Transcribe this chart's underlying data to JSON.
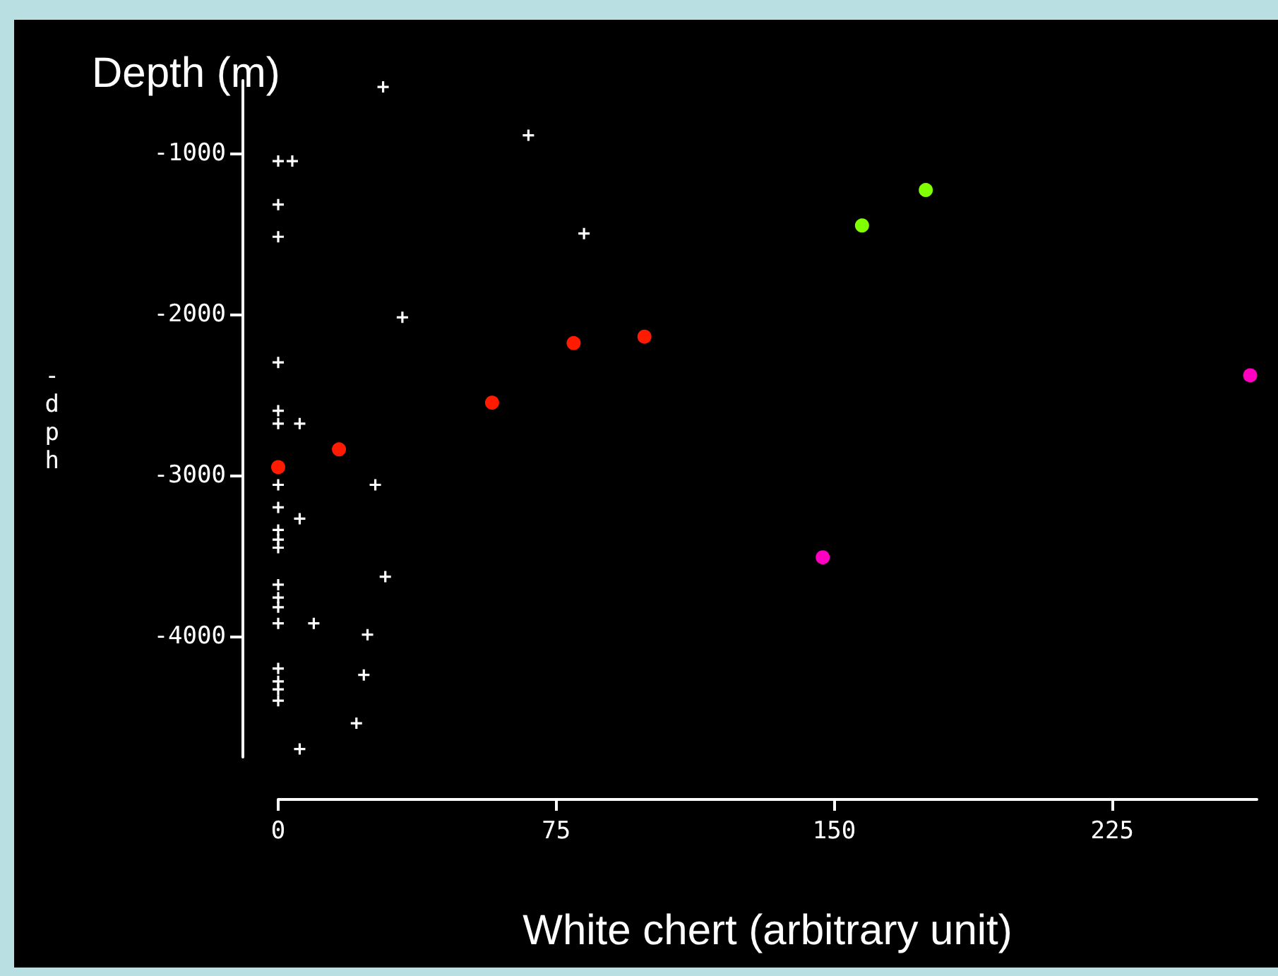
{
  "chart_data": {
    "type": "scatter",
    "title": "Depth (m)",
    "xlabel": "White chert (arbitrary unit)",
    "ylabel": "-dph",
    "xlim": [
      0,
      264
    ],
    "xticks": [
      0,
      75,
      150,
      225
    ],
    "ylim": [
      -4750,
      -550
    ],
    "yticks": [
      -4000,
      -3000,
      -2000,
      -1000
    ],
    "grid": false,
    "series": [
      {
        "color": "#ffffff",
        "marker": "cross",
        "x": [
          28.3,
          67.5,
          0,
          3.8,
          0,
          0,
          82.5,
          33.5,
          0,
          0,
          0,
          5.8,
          0,
          26.2,
          0,
          5.8,
          0,
          0,
          0,
          28.9,
          0,
          0,
          0,
          0,
          9.6,
          24.1,
          0,
          0,
          0,
          0,
          23.1,
          21.1,
          5.8
        ],
        "values": [
          -590,
          -890,
          -1050,
          -1050,
          -1320,
          -1520,
          -1500,
          -2020,
          -2300,
          -2600,
          -2680,
          -2680,
          -3060,
          -3060,
          -3200,
          -3270,
          -3340,
          -3400,
          -3450,
          -3630,
          -3680,
          -3760,
          -3820,
          -3920,
          -3920,
          -3990,
          -4200,
          -4280,
          -4330,
          -4400,
          -4240,
          -4540,
          -4700
        ]
      },
      {
        "color": "#ff1a00",
        "marker": "circle",
        "x": [
          0,
          16.4,
          57.7,
          79.7,
          98.8
        ],
        "values": [
          -2950,
          -2840,
          -2550,
          -2180,
          -2140
        ]
      },
      {
        "color": "#80ff00",
        "marker": "circle",
        "x": [
          157.5,
          174.7
        ],
        "values": [
          -1450,
          -1230
        ]
      },
      {
        "color": "#ff00c0",
        "marker": "circle",
        "x": [
          146.9,
          262.2
        ],
        "values": [
          -3510,
          -2380
        ]
      }
    ]
  }
}
